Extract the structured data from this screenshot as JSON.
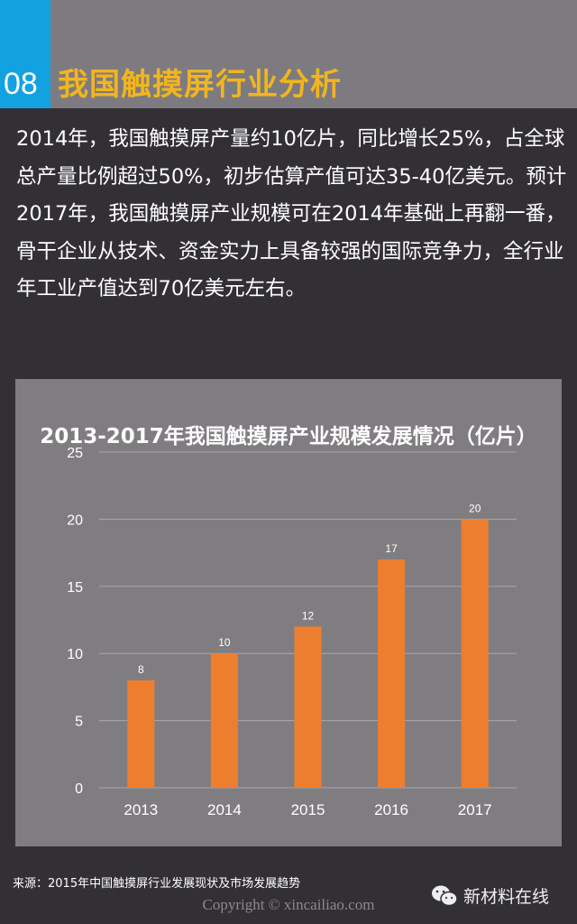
{
  "header": {
    "number": "08",
    "title": "我国触摸屏行业分析",
    "colors": {
      "accent_blue": "#12a2e2",
      "title_yellow": "#f2b51e"
    }
  },
  "body_text": "2014年，我国触摸屏产量约10亿片，同比增长25%，占全球总产量比例超过50%，初步估算产值可达35-40亿美元。预计2017年，我国触摸屏产业规模可在2014年基础上再翻一番，骨干企业从技术、资金实力上具备较强的国际竞争力，全行业年工业产值达到70亿美元左右。",
  "chart_data": {
    "type": "bar",
    "title": "2013-2017年我国触摸屏产业规模发展情况（亿片）",
    "categories": [
      "2013",
      "2014",
      "2015",
      "2016",
      "2017"
    ],
    "values": [
      8,
      10,
      12,
      17,
      20
    ],
    "data_labels": [
      "8",
      "10",
      "12",
      "17",
      "20"
    ],
    "ylim": [
      0,
      25
    ],
    "yticks": [
      "0",
      "5",
      "10",
      "15",
      "20",
      "25"
    ],
    "grid": true,
    "bar_color": "#ee7e2f"
  },
  "footer": {
    "source": "来源：2015年中国触摸屏行业发展现状及市场发展趋势",
    "copyright": "Copyright © xincailiao.com",
    "brand": "新材料在线",
    "brand_icon": "wechat-icon"
  }
}
